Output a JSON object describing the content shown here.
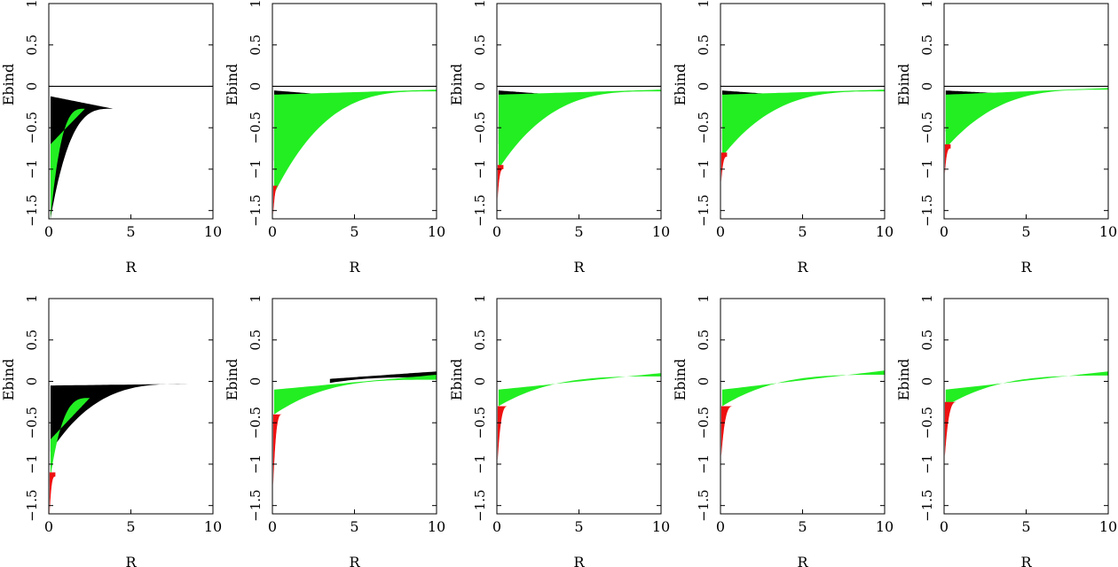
{
  "colors": {
    "black": "#000000",
    "green": "#22ee22",
    "red": "#ee1111"
  },
  "chart_data": [
    {
      "type": "scatter",
      "title": "",
      "xlabel": "R",
      "ylabel": "Ebind",
      "xlim": [
        0,
        10
      ],
      "ylim": [
        -1.6,
        1.0
      ],
      "x_ticks": [
        0,
        5,
        10
      ],
      "y_ticks": [
        1,
        0.5,
        0,
        -0.5,
        -1,
        -1.5
      ],
      "zero_line": true,
      "grid": false,
      "series": [
        {
          "color": "black",
          "x_range": [
            0.1,
            3.9
          ],
          "y_floor": [
            -1.6,
            -0.27
          ],
          "y_ceiling": [
            -0.12,
            -0.27
          ]
        },
        {
          "color": "green",
          "x_range": [
            0.1,
            2.2
          ],
          "y_floor": [
            -1.6,
            -0.27
          ],
          "y_ceiling": [
            -0.7,
            -0.27
          ]
        }
      ]
    },
    {
      "type": "scatter",
      "title": "",
      "xlabel": "R",
      "ylabel": "Ebind",
      "xlim": [
        0,
        10
      ],
      "ylim": [
        -1.6,
        1.0
      ],
      "x_ticks": [
        0,
        5,
        10
      ],
      "y_ticks": [
        1,
        0.5,
        0,
        -0.5,
        -1,
        -1.5
      ],
      "zero_line": true,
      "grid": false,
      "series": [
        {
          "color": "black",
          "x_range": [
            0.1,
            4.5
          ],
          "y_floor": [
            -0.9,
            -0.2
          ],
          "y_ceiling": [
            -0.05,
            -0.12
          ]
        },
        {
          "color": "green",
          "x_range": [
            0.1,
            10
          ],
          "y_floor": [
            -1.3,
            -0.06
          ],
          "y_ceiling": [
            -0.1,
            -0.04
          ]
        },
        {
          "color": "red",
          "x_range": [
            0.05,
            0.4
          ],
          "y_floor": [
            -1.55,
            -1.2
          ],
          "y_ceiling": [
            -1.2,
            -1.2
          ]
        }
      ]
    },
    {
      "type": "scatter",
      "title": "",
      "xlabel": "R",
      "ylabel": "Ebind",
      "xlim": [
        0,
        10
      ],
      "ylim": [
        -1.6,
        1.0
      ],
      "x_ticks": [
        0,
        5,
        10
      ],
      "y_ticks": [
        1,
        0.5,
        0,
        -0.5,
        -1,
        -1.5
      ],
      "zero_line": true,
      "grid": false,
      "series": [
        {
          "color": "black",
          "x_range": [
            0.1,
            3.5
          ],
          "y_floor": [
            -0.7,
            -0.15
          ],
          "y_ceiling": [
            -0.05,
            -0.1
          ]
        },
        {
          "color": "green",
          "x_range": [
            0.1,
            10
          ],
          "y_floor": [
            -1.0,
            -0.06
          ],
          "y_ceiling": [
            -0.1,
            -0.04
          ]
        },
        {
          "color": "red",
          "x_range": [
            0.05,
            0.4
          ],
          "y_floor": [
            -1.35,
            -1.0
          ],
          "y_ceiling": [
            -0.95,
            -0.95
          ]
        }
      ]
    },
    {
      "type": "scatter",
      "title": "",
      "xlabel": "R",
      "ylabel": "Ebind",
      "xlim": [
        0,
        10
      ],
      "ylim": [
        -1.6,
        1.0
      ],
      "x_ticks": [
        0,
        5,
        10
      ],
      "y_ticks": [
        1,
        0.5,
        0,
        -0.5,
        -1,
        -1.5
      ],
      "zero_line": true,
      "grid": false,
      "series": [
        {
          "color": "black",
          "x_range": [
            0.1,
            3.5
          ],
          "y_floor": [
            -0.65,
            -0.15
          ],
          "y_ceiling": [
            -0.05,
            -0.1
          ]
        },
        {
          "color": "green",
          "x_range": [
            0.1,
            10
          ],
          "y_floor": [
            -0.85,
            -0.06
          ],
          "y_ceiling": [
            -0.1,
            -0.04
          ]
        },
        {
          "color": "red",
          "x_range": [
            0.05,
            0.4
          ],
          "y_floor": [
            -1.15,
            -0.85
          ],
          "y_ceiling": [
            -0.8,
            -0.8
          ]
        }
      ]
    },
    {
      "type": "scatter",
      "title": "",
      "xlabel": "R",
      "ylabel": "Ebind",
      "xlim": [
        0,
        10
      ],
      "ylim": [
        -1.6,
        1.0
      ],
      "x_ticks": [
        0,
        5,
        10
      ],
      "y_ticks": [
        1,
        0.5,
        0,
        -0.5,
        -1,
        -1.5
      ],
      "zero_line": true,
      "grid": false,
      "series": [
        {
          "color": "black",
          "x_range": [
            0.1,
            3.0
          ],
          "y_floor": [
            -0.55,
            -0.12
          ],
          "y_ceiling": [
            -0.05,
            -0.08
          ]
        },
        {
          "color": "green",
          "x_range": [
            0.1,
            10
          ],
          "y_floor": [
            -0.75,
            -0.04
          ],
          "y_ceiling": [
            -0.1,
            -0.02
          ]
        },
        {
          "color": "red",
          "x_range": [
            0.05,
            0.4
          ],
          "y_floor": [
            -1.05,
            -0.75
          ],
          "y_ceiling": [
            -0.7,
            -0.7
          ]
        }
      ]
    },
    {
      "type": "scatter",
      "title": "",
      "xlabel": "R",
      "ylabel": "Ebind",
      "xlim": [
        0,
        10
      ],
      "ylim": [
        -1.6,
        1.0
      ],
      "x_ticks": [
        0,
        5,
        10
      ],
      "y_ticks": [
        1,
        0.5,
        0,
        -0.5,
        -1,
        -1.5
      ],
      "zero_line": false,
      "grid": false,
      "series": [
        {
          "color": "black",
          "x_range": [
            0.1,
            8.7
          ],
          "y_floor": [
            -0.85,
            -0.03
          ],
          "y_ceiling": [
            -0.05,
            -0.03
          ]
        },
        {
          "color": "green",
          "x_range": [
            0.1,
            2.5
          ],
          "y_floor": [
            -1.15,
            -0.2
          ],
          "y_ceiling": [
            -0.7,
            -0.2
          ]
        },
        {
          "color": "red",
          "x_range": [
            0.05,
            0.4
          ],
          "y_floor": [
            -1.6,
            -1.15
          ],
          "y_ceiling": [
            -1.1,
            -1.1
          ]
        }
      ]
    },
    {
      "type": "scatter",
      "title": "",
      "xlabel": "R",
      "ylabel": "Ebind",
      "xlim": [
        0,
        10
      ],
      "ylim": [
        -1.6,
        1.0
      ],
      "x_ticks": [
        0,
        5,
        10
      ],
      "y_ticks": [
        1,
        0.5,
        0,
        -0.5,
        -1,
        -1.5
      ],
      "zero_line": false,
      "grid": false,
      "series": [
        {
          "color": "black",
          "x_range": [
            3.5,
            10
          ],
          "y_floor": [
            -0.02,
            0.05
          ],
          "y_ceiling": [
            0.03,
            0.12
          ]
        },
        {
          "color": "green",
          "x_range": [
            0.1,
            10
          ],
          "y_floor": [
            -0.4,
            0.02
          ],
          "y_ceiling": [
            -0.1,
            0.08
          ]
        },
        {
          "color": "red",
          "x_range": [
            0.05,
            0.6
          ],
          "y_floor": [
            -1.25,
            -0.4
          ],
          "y_ceiling": [
            -0.4,
            -0.4
          ]
        }
      ]
    },
    {
      "type": "scatter",
      "title": "",
      "xlabel": "R",
      "ylabel": "Ebind",
      "xlim": [
        0,
        10
      ],
      "ylim": [
        -1.6,
        1.0
      ],
      "x_ticks": [
        0,
        5,
        10
      ],
      "y_ticks": [
        1,
        0.5,
        0,
        -0.5,
        -1,
        -1.5
      ],
      "zero_line": false,
      "grid": false,
      "series": [
        {
          "color": "green",
          "x_range": [
            0.1,
            10
          ],
          "y_floor": [
            -0.3,
            0.06
          ],
          "y_ceiling": [
            -0.1,
            0.1
          ]
        },
        {
          "color": "red",
          "x_range": [
            0.05,
            0.7
          ],
          "y_floor": [
            -0.95,
            -0.3
          ],
          "y_ceiling": [
            -0.3,
            -0.3
          ]
        }
      ]
    },
    {
      "type": "scatter",
      "title": "",
      "xlabel": "R",
      "ylabel": "Ebind",
      "xlim": [
        0,
        10
      ],
      "ylim": [
        -1.6,
        1.0
      ],
      "x_ticks": [
        0,
        5,
        10
      ],
      "y_ticks": [
        1,
        0.5,
        0,
        -0.5,
        -1,
        -1.5
      ],
      "zero_line": false,
      "grid": false,
      "series": [
        {
          "color": "green",
          "x_range": [
            0.1,
            10
          ],
          "y_floor": [
            -0.3,
            0.08
          ],
          "y_ceiling": [
            -0.1,
            0.13
          ]
        },
        {
          "color": "red",
          "x_range": [
            0.05,
            0.8
          ],
          "y_floor": [
            -0.9,
            -0.3
          ],
          "y_ceiling": [
            -0.3,
            -0.3
          ]
        }
      ]
    },
    {
      "type": "scatter",
      "title": "",
      "xlabel": "R",
      "ylabel": "Ebind",
      "xlim": [
        0,
        10
      ],
      "ylim": [
        -1.6,
        1.0
      ],
      "x_ticks": [
        0,
        5,
        10
      ],
      "y_ticks": [
        1,
        0.5,
        0,
        -0.5,
        -1,
        -1.5
      ],
      "zero_line": false,
      "grid": false,
      "series": [
        {
          "color": "green",
          "x_range": [
            0.1,
            10
          ],
          "y_floor": [
            -0.3,
            0.07
          ],
          "y_ceiling": [
            -0.1,
            0.12
          ]
        },
        {
          "color": "red",
          "x_range": [
            0.05,
            0.8
          ],
          "y_floor": [
            -0.9,
            -0.25
          ],
          "y_ceiling": [
            -0.25,
            -0.25
          ]
        }
      ]
    }
  ]
}
